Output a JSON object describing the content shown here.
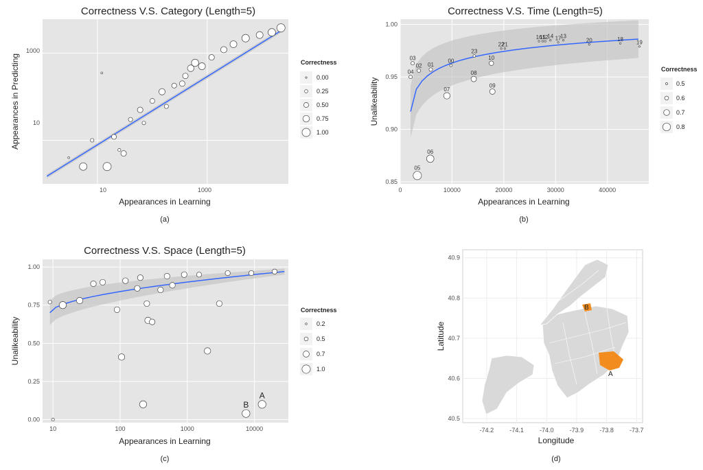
{
  "colors": {
    "panel": "#e5e5e5",
    "grid": "#ffffff",
    "fit": "#3366ff",
    "ribbon": "#bfbfbf",
    "highlight": "#f28c1e",
    "map_fill": "#d9d9d9"
  },
  "chart_data": [
    {
      "id": "a",
      "type": "scatter",
      "title": "Correctness V.S. Category (Length=5)",
      "xlabel": "Appearances in Learning",
      "ylabel": "Appearances in Predicting",
      "caption": "(a)",
      "x_scale": "log",
      "y_scale": "log",
      "xlim": [
        1,
        30000
      ],
      "ylim": [
        1,
        6000
      ],
      "x_ticks": [
        "10",
        "1000"
      ],
      "y_ticks": [
        "10",
        "1000"
      ],
      "legend": {
        "title": "Correctness",
        "position": "right",
        "labels": [
          "0.00",
          "0.25",
          "0.50",
          "0.75",
          "1.00"
        ]
      },
      "fit": {
        "x": [
          1.2,
          25000
        ],
        "y": [
          1.5,
          3600
        ]
      },
      "points": [
        {
          "x": 5.5,
          "y": 2.5,
          "c": 0.9
        },
        {
          "x": 15,
          "y": 2.5,
          "c": 1.0
        },
        {
          "x": 30,
          "y": 5,
          "c": 0.6
        },
        {
          "x": 8,
          "y": 10,
          "c": 0.3
        },
        {
          "x": 12,
          "y": 350,
          "c": 0.05
        },
        {
          "x": 20,
          "y": 12,
          "c": 0.5
        },
        {
          "x": 40,
          "y": 30,
          "c": 0.4
        },
        {
          "x": 60,
          "y": 50,
          "c": 0.6
        },
        {
          "x": 100,
          "y": 80,
          "c": 0.5
        },
        {
          "x": 150,
          "y": 130,
          "c": 0.7
        },
        {
          "x": 250,
          "y": 180,
          "c": 0.5
        },
        {
          "x": 400,
          "y": 300,
          "c": 0.6
        },
        {
          "x": 500,
          "y": 450,
          "c": 0.75
        },
        {
          "x": 800,
          "y": 500,
          "c": 0.8
        },
        {
          "x": 1200,
          "y": 800,
          "c": 0.6
        },
        {
          "x": 2000,
          "y": 1200,
          "c": 0.7
        },
        {
          "x": 3000,
          "y": 1600,
          "c": 0.8
        },
        {
          "x": 5000,
          "y": 2200,
          "c": 0.9
        },
        {
          "x": 9000,
          "y": 2600,
          "c": 0.8
        },
        {
          "x": 15000,
          "y": 3000,
          "c": 0.9
        },
        {
          "x": 22000,
          "y": 3800,
          "c": 1.0
        },
        {
          "x": 350,
          "y": 200,
          "c": 0.6
        },
        {
          "x": 600,
          "y": 600,
          "c": 0.85
        },
        {
          "x": 180,
          "y": 60,
          "c": 0.4
        },
        {
          "x": 70,
          "y": 25,
          "c": 0.3
        },
        {
          "x": 25,
          "y": 6,
          "c": 0.2
        },
        {
          "x": 3,
          "y": 4,
          "c": 0.05
        }
      ]
    },
    {
      "id": "b",
      "type": "scatter",
      "title": "Correctness V.S. Time (Length=5)",
      "xlabel": "Appearances in Learning",
      "ylabel": "Unalikeability",
      "caption": "(b)",
      "xlim": [
        0,
        48000
      ],
      "ylim": [
        0.848,
        1.005
      ],
      "x_ticks": [
        0,
        10000,
        20000,
        30000,
        40000
      ],
      "y_ticks": [
        "0.85",
        "0.90",
        "0.95",
        "1.00"
      ],
      "legend": {
        "title": "Correctness",
        "position": "right",
        "labels": [
          "0.5",
          "0.6",
          "0.7",
          "0.8"
        ]
      },
      "fit": {
        "x": [
          2000,
          46000
        ],
        "y": [
          0.917,
          0.986
        ]
      },
      "points": [
        {
          "label": "05",
          "x": 3300,
          "y": 0.856,
          "c": 0.85
        },
        {
          "label": "06",
          "x": 5800,
          "y": 0.872,
          "c": 0.8
        },
        {
          "label": "07",
          "x": 9000,
          "y": 0.932,
          "c": 0.75
        },
        {
          "label": "09",
          "x": 17800,
          "y": 0.936,
          "c": 0.7
        },
        {
          "label": "08",
          "x": 14200,
          "y": 0.948,
          "c": 0.7
        },
        {
          "label": "10",
          "x": 17600,
          "y": 0.963,
          "c": 0.65
        },
        {
          "label": "04",
          "x": 2000,
          "y": 0.95,
          "c": 0.6
        },
        {
          "label": "02",
          "x": 3600,
          "y": 0.956,
          "c": 0.6
        },
        {
          "label": "01",
          "x": 5900,
          "y": 0.957,
          "c": 0.6
        },
        {
          "label": "03",
          "x": 2400,
          "y": 0.963,
          "c": 0.6
        },
        {
          "label": "00",
          "x": 9800,
          "y": 0.961,
          "c": 0.55
        },
        {
          "label": "23",
          "x": 14300,
          "y": 0.97,
          "c": 0.55
        },
        {
          "label": "22",
          "x": 19500,
          "y": 0.977,
          "c": 0.5
        },
        {
          "label": "21",
          "x": 20200,
          "y": 0.977,
          "c": 0.5
        },
        {
          "label": "16",
          "x": 26800,
          "y": 0.984,
          "c": 0.5
        },
        {
          "label": "15",
          "x": 27500,
          "y": 0.984,
          "c": 0.5
        },
        {
          "label": "12",
          "x": 28000,
          "y": 0.984,
          "c": 0.5
        },
        {
          "label": "14",
          "x": 29000,
          "y": 0.985,
          "c": 0.5
        },
        {
          "label": "17",
          "x": 30500,
          "y": 0.983,
          "c": 0.5
        },
        {
          "label": "13",
          "x": 31500,
          "y": 0.985,
          "c": 0.5
        },
        {
          "label": "20",
          "x": 36500,
          "y": 0.981,
          "c": 0.5
        },
        {
          "label": "18",
          "x": 42500,
          "y": 0.982,
          "c": 0.5
        },
        {
          "label": "19",
          "x": 46200,
          "y": 0.979,
          "c": 0.5
        }
      ]
    },
    {
      "id": "c",
      "type": "scatter",
      "title": "Correctness V.S. Space (Length=5)",
      "xlabel": "Appearances in Learning",
      "ylabel": "Unalikeability",
      "caption": "(c)",
      "x_scale": "log",
      "xlim": [
        7,
        32000
      ],
      "ylim": [
        -0.02,
        1.05
      ],
      "x_ticks": [
        "10",
        "100",
        "1000",
        "10000"
      ],
      "y_ticks": [
        "0.00",
        "0.25",
        "0.50",
        "0.75",
        "1.00"
      ],
      "legend": {
        "title": "Correctness",
        "position": "right",
        "labels": [
          "0.2",
          "0.5",
          "0.7",
          "1.0"
        ]
      },
      "fit": {
        "x": [
          9,
          28000
        ],
        "y": [
          0.7,
          0.97
        ]
      },
      "points": [
        {
          "x": 10,
          "y": 0.0,
          "c": 0.2
        },
        {
          "x": 9,
          "y": 0.77,
          "c": 0.3
        },
        {
          "x": 14,
          "y": 0.75,
          "c": 0.8
        },
        {
          "x": 25,
          "y": 0.78,
          "c": 0.7
        },
        {
          "x": 40,
          "y": 0.89,
          "c": 0.6
        },
        {
          "x": 55,
          "y": 0.9,
          "c": 0.6
        },
        {
          "x": 90,
          "y": 0.72,
          "c": 0.6
        },
        {
          "x": 105,
          "y": 0.41,
          "c": 0.7
        },
        {
          "x": 220,
          "y": 0.1,
          "c": 0.8
        },
        {
          "x": 260,
          "y": 0.65,
          "c": 0.7
        },
        {
          "x": 300,
          "y": 0.64,
          "c": 0.6
        },
        {
          "x": 250,
          "y": 0.76,
          "c": 0.6
        },
        {
          "x": 400,
          "y": 0.85,
          "c": 0.6
        },
        {
          "x": 2000,
          "y": 0.45,
          "c": 0.7
        },
        {
          "x": 3000,
          "y": 0.76,
          "c": 0.6
        },
        {
          "x": 7500,
          "y": 0.04,
          "c": 0.9,
          "label": "B"
        },
        {
          "x": 13000,
          "y": 0.1,
          "c": 0.9,
          "label": "A"
        },
        {
          "x": 120,
          "y": 0.91,
          "c": 0.6
        },
        {
          "x": 200,
          "y": 0.93,
          "c": 0.6
        },
        {
          "x": 500,
          "y": 0.94,
          "c": 0.6
        },
        {
          "x": 900,
          "y": 0.95,
          "c": 0.6
        },
        {
          "x": 1500,
          "y": 0.95,
          "c": 0.5
        },
        {
          "x": 4000,
          "y": 0.96,
          "c": 0.5
        },
        {
          "x": 9000,
          "y": 0.96,
          "c": 0.5
        },
        {
          "x": 20000,
          "y": 0.97,
          "c": 0.5
        },
        {
          "x": 600,
          "y": 0.88,
          "c": 0.6
        },
        {
          "x": 180,
          "y": 0.86,
          "c": 0.6
        }
      ]
    },
    {
      "id": "d",
      "type": "map",
      "xlabel": "Longitude",
      "ylabel": "Latitude",
      "caption": "(d)",
      "xlim": [
        -74.28,
        -73.68
      ],
      "ylim": [
        40.49,
        40.92
      ],
      "x_ticks": [
        "-74.2",
        "-74.1",
        "-74.0",
        "-73.9",
        "-73.8",
        "-73.7"
      ],
      "y_ticks": [
        "40.5",
        "40.6",
        "40.7",
        "40.8",
        "40.9"
      ],
      "regions": [
        {
          "label": "A",
          "lon": -73.79,
          "lat": 40.65
        },
        {
          "label": "B",
          "lon": -73.88,
          "lat": 40.77
        }
      ]
    }
  ]
}
